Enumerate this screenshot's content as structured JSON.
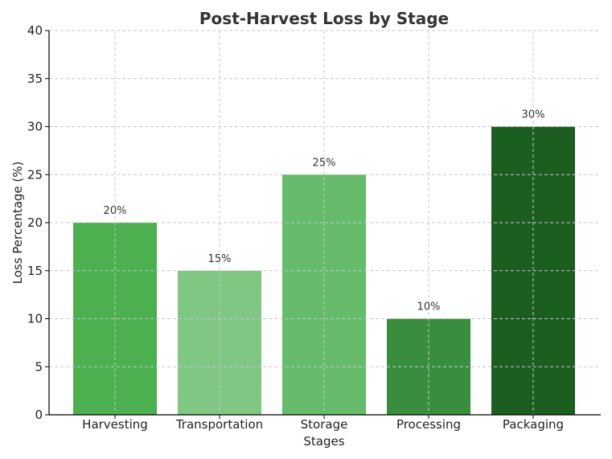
{
  "chart_data": {
    "type": "bar",
    "title": "Post-Harvest Loss by Stage",
    "xlabel": "Stages",
    "ylabel": "Loss Percentage (%)",
    "categories": [
      "Harvesting",
      "Transportation",
      "Storage",
      "Processing",
      "Packaging"
    ],
    "values": [
      20,
      15,
      25,
      10,
      30
    ],
    "data_labels": [
      "20%",
      "15%",
      "25%",
      "10%",
      "30%"
    ],
    "bar_colors": [
      "#4caf50",
      "#81c784",
      "#66bb6a",
      "#388e3c",
      "#1b5e20"
    ],
    "ylim": [
      0,
      40
    ],
    "yticks": [
      0,
      5,
      10,
      15,
      20,
      25,
      30,
      35,
      40
    ],
    "grid": true,
    "legend": "none"
  }
}
